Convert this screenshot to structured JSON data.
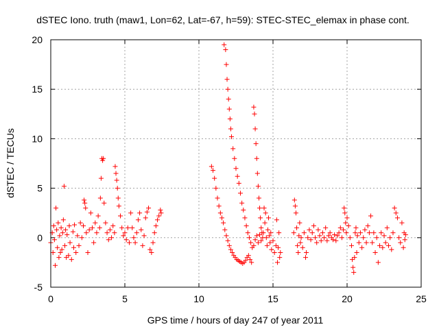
{
  "chart_data": {
    "type": "scatter",
    "title": "dSTEC Iono. truth (maw1, Lon=62, Lat=-67, h=59): STEC-STEC_elemax in phase cont.",
    "xlabel": "GPS time / hours of day 247 of year 2011",
    "ylabel": "dSTEC  / TECUs",
    "xlim": [
      0,
      25
    ],
    "ylim": [
      -5,
      20
    ],
    "xticks": [
      0,
      5,
      10,
      15,
      20,
      25
    ],
    "yticks": [
      -5,
      0,
      5,
      10,
      15,
      20
    ],
    "grid": true,
    "marker": "+",
    "color": "#ff0000",
    "series": [
      {
        "name": "",
        "points": [
          [
            0.0,
            -0.5
          ],
          [
            0.1,
            0.5
          ],
          [
            0.15,
            -1.5
          ],
          [
            0.2,
            1.2
          ],
          [
            0.25,
            -0.2
          ],
          [
            0.3,
            -2.8
          ],
          [
            0.35,
            3.0
          ],
          [
            0.4,
            0.8
          ],
          [
            0.45,
            -1.0
          ],
          [
            0.5,
            1.5
          ],
          [
            0.55,
            -2.0
          ],
          [
            0.6,
            0.2
          ],
          [
            0.65,
            -1.5
          ],
          [
            0.7,
            1.0
          ],
          [
            0.75,
            -1.2
          ],
          [
            0.8,
            0.5
          ],
          [
            0.85,
            1.8
          ],
          [
            0.9,
            5.2
          ],
          [
            0.95,
            -0.8
          ],
          [
            1.0,
            0.8
          ],
          [
            1.05,
            -2.0
          ],
          [
            1.1,
            0.3
          ],
          [
            1.2,
            -1.8
          ],
          [
            1.25,
            1.2
          ],
          [
            1.3,
            -0.5
          ],
          [
            1.4,
            -2.2
          ],
          [
            1.5,
            0.6
          ],
          [
            1.55,
            -1.0
          ],
          [
            1.6,
            1.3
          ],
          [
            1.7,
            -1.5
          ],
          [
            1.8,
            0.2
          ],
          [
            1.9,
            -0.8
          ],
          [
            2.0,
            1.5
          ],
          [
            2.1,
            0.0
          ],
          [
            2.2,
            1.2
          ],
          [
            2.25,
            3.8
          ],
          [
            2.3,
            3.5
          ],
          [
            2.35,
            3.0
          ],
          [
            2.4,
            0.5
          ],
          [
            2.5,
            -1.5
          ],
          [
            2.6,
            0.8
          ],
          [
            2.7,
            2.5
          ],
          [
            2.8,
            1.0
          ],
          [
            2.9,
            -0.5
          ],
          [
            3.0,
            1.5
          ],
          [
            3.1,
            0.5
          ],
          [
            3.2,
            2.2
          ],
          [
            3.3,
            1.0
          ],
          [
            3.35,
            4.0
          ],
          [
            3.4,
            6.0
          ],
          [
            3.45,
            8.0
          ],
          [
            3.5,
            7.8
          ],
          [
            3.55,
            8.0
          ],
          [
            3.6,
            3.5
          ],
          [
            3.7,
            1.5
          ],
          [
            3.8,
            0.5
          ],
          [
            3.9,
            -0.2
          ],
          [
            4.0,
            0.8
          ],
          [
            4.1,
            0.0
          ],
          [
            4.2,
            1.2
          ],
          [
            4.3,
            0.5
          ],
          [
            4.35,
            7.2
          ],
          [
            4.4,
            6.5
          ],
          [
            4.45,
            5.8
          ],
          [
            4.5,
            5.0
          ],
          [
            4.55,
            4.0
          ],
          [
            4.6,
            3.2
          ],
          [
            4.7,
            2.2
          ],
          [
            4.8,
            1.0
          ],
          [
            4.9,
            0.2
          ],
          [
            5.0,
            0.5
          ],
          [
            5.1,
            -0.2
          ],
          [
            5.2,
            1.0
          ],
          [
            5.3,
            -0.5
          ],
          [
            5.4,
            2.5
          ],
          [
            5.5,
            1.0
          ],
          [
            5.6,
            0.0
          ],
          [
            5.7,
            -0.5
          ],
          [
            5.8,
            0.5
          ],
          [
            5.9,
            1.8
          ],
          [
            6.0,
            2.5
          ],
          [
            6.1,
            0.8
          ],
          [
            6.2,
            -0.8
          ],
          [
            6.3,
            0.2
          ],
          [
            6.4,
            2.0
          ],
          [
            6.5,
            2.6
          ],
          [
            6.6,
            3.0
          ],
          [
            6.7,
            -1.2
          ],
          [
            6.8,
            -1.5
          ],
          [
            6.9,
            -0.5
          ],
          [
            7.0,
            0.5
          ],
          [
            7.1,
            1.2
          ],
          [
            7.2,
            1.8
          ],
          [
            7.3,
            2.2
          ],
          [
            7.4,
            2.8
          ],
          [
            7.45,
            2.5
          ],
          [
            10.85,
            7.2
          ],
          [
            10.95,
            6.8
          ],
          [
            11.05,
            6.0
          ],
          [
            11.15,
            5.0
          ],
          [
            11.25,
            4.0
          ],
          [
            11.35,
            3.2
          ],
          [
            11.45,
            2.5
          ],
          [
            11.55,
            2.0
          ],
          [
            11.65,
            1.5
          ],
          [
            11.75,
            0.8
          ],
          [
            11.85,
            0.2
          ],
          [
            11.95,
            -0.3
          ],
          [
            12.05,
            -0.8
          ],
          [
            12.15,
            -1.2
          ],
          [
            12.25,
            -1.5
          ],
          [
            12.35,
            -1.8
          ],
          [
            12.45,
            -2.0
          ],
          [
            12.55,
            -2.2
          ],
          [
            12.65,
            -2.3
          ],
          [
            12.75,
            -2.4
          ],
          [
            12.85,
            -2.5
          ],
          [
            12.95,
            -2.6
          ],
          [
            13.05,
            -2.5
          ],
          [
            13.15,
            -2.3
          ],
          [
            13.25,
            -2.0
          ],
          [
            13.35,
            -1.8
          ],
          [
            13.45,
            -2.2
          ],
          [
            13.55,
            -2.5
          ],
          [
            11.7,
            19.5
          ],
          [
            11.8,
            19.0
          ],
          [
            11.85,
            17.5
          ],
          [
            11.9,
            16.0
          ],
          [
            11.95,
            15.0
          ],
          [
            12.0,
            14.0
          ],
          [
            12.05,
            13.0
          ],
          [
            12.1,
            12.0
          ],
          [
            12.15,
            11.0
          ],
          [
            12.2,
            10.2
          ],
          [
            12.3,
            9.0
          ],
          [
            12.4,
            8.0
          ],
          [
            12.5,
            7.0
          ],
          [
            12.6,
            6.2
          ],
          [
            12.7,
            5.5
          ],
          [
            12.8,
            4.5
          ],
          [
            12.9,
            3.5
          ],
          [
            13.0,
            2.8
          ],
          [
            13.1,
            2.0
          ],
          [
            13.2,
            1.2
          ],
          [
            13.3,
            0.5
          ],
          [
            13.4,
            0.0
          ],
          [
            13.5,
            -0.5
          ],
          [
            13.6,
            -1.0
          ],
          [
            13.7,
            -0.8
          ],
          [
            13.7,
            13.2
          ],
          [
            13.75,
            12.5
          ],
          [
            13.8,
            11.0
          ],
          [
            13.85,
            9.5
          ],
          [
            13.9,
            8.0
          ],
          [
            13.95,
            6.5
          ],
          [
            14.0,
            5.2
          ],
          [
            14.05,
            4.0
          ],
          [
            14.1,
            3.0
          ],
          [
            14.15,
            2.0
          ],
          [
            14.2,
            1.0
          ],
          [
            14.25,
            0.5
          ],
          [
            14.3,
            0.0
          ],
          [
            13.8,
            -0.2
          ],
          [
            13.9,
            0.2
          ],
          [
            14.0,
            -0.5
          ],
          [
            14.1,
            0.3
          ],
          [
            14.2,
            -0.3
          ],
          [
            14.35,
            0.5
          ],
          [
            14.4,
            3.0
          ],
          [
            14.45,
            1.5
          ],
          [
            14.5,
            2.5
          ],
          [
            14.55,
            0.0
          ],
          [
            14.6,
            -0.8
          ],
          [
            14.65,
            0.8
          ],
          [
            14.7,
            2.0
          ],
          [
            14.75,
            0.2
          ],
          [
            14.8,
            -0.5
          ],
          [
            14.85,
            0.5
          ],
          [
            14.9,
            -1.2
          ],
          [
            15.0,
            -0.3
          ],
          [
            15.1,
            -1.5
          ],
          [
            15.2,
            -0.8
          ],
          [
            15.25,
            1.8
          ],
          [
            15.3,
            -2.5
          ],
          [
            15.35,
            -1.0
          ],
          [
            15.4,
            0.5
          ],
          [
            15.45,
            -2.0
          ],
          [
            15.5,
            -1.5
          ],
          [
            16.4,
            0.5
          ],
          [
            16.45,
            3.8
          ],
          [
            16.5,
            3.2
          ],
          [
            16.55,
            2.5
          ],
          [
            16.6,
            1.0
          ],
          [
            16.65,
            -0.8
          ],
          [
            16.7,
            -1.5
          ],
          [
            16.75,
            0.2
          ],
          [
            16.8,
            1.5
          ],
          [
            16.85,
            -0.5
          ],
          [
            16.9,
            0.0
          ],
          [
            17.0,
            -1.0
          ],
          [
            17.1,
            0.5
          ],
          [
            17.2,
            -2.0
          ],
          [
            17.25,
            -1.5
          ],
          [
            17.35,
            0.0
          ],
          [
            17.45,
            0.8
          ],
          [
            17.55,
            -0.2
          ],
          [
            17.65,
            0.5
          ],
          [
            17.75,
            1.2
          ],
          [
            17.85,
            0.0
          ],
          [
            17.95,
            -0.5
          ],
          [
            18.05,
            0.8
          ],
          [
            18.15,
            0.2
          ],
          [
            18.25,
            -0.3
          ],
          [
            18.35,
            0.5
          ],
          [
            18.45,
            0.0
          ],
          [
            18.55,
            1.0
          ],
          [
            18.65,
            -0.3
          ],
          [
            18.75,
            0.2
          ],
          [
            18.85,
            0.5
          ],
          [
            18.95,
            0.0
          ],
          [
            19.05,
            -0.2
          ],
          [
            19.15,
            0.3
          ],
          [
            19.25,
            -0.3
          ],
          [
            19.35,
            0.2
          ],
          [
            19.45,
            0.5
          ],
          [
            19.55,
            1.0
          ],
          [
            19.65,
            0.0
          ],
          [
            19.75,
            0.8
          ],
          [
            19.8,
            3.0
          ],
          [
            19.85,
            2.5
          ],
          [
            19.9,
            1.5
          ],
          [
            19.95,
            0.5
          ],
          [
            20.0,
            2.0
          ],
          [
            20.1,
            1.2
          ],
          [
            20.2,
            0.0
          ],
          [
            20.3,
            -0.8
          ],
          [
            20.35,
            -2.2
          ],
          [
            20.4,
            -3.0
          ],
          [
            20.45,
            -3.5
          ],
          [
            20.5,
            -2.0
          ],
          [
            20.55,
            0.5
          ],
          [
            20.6,
            1.0
          ],
          [
            20.65,
            -1.5
          ],
          [
            20.7,
            0.2
          ],
          [
            20.8,
            -0.5
          ],
          [
            20.9,
            0.5
          ],
          [
            21.0,
            -1.0
          ],
          [
            21.1,
            0.0
          ],
          [
            21.2,
            0.8
          ],
          [
            21.3,
            -0.5
          ],
          [
            21.4,
            1.2
          ],
          [
            21.5,
            0.5
          ],
          [
            21.6,
            2.2
          ],
          [
            21.7,
            -0.5
          ],
          [
            21.8,
            0.5
          ],
          [
            21.9,
            -1.5
          ],
          [
            22.0,
            0.0
          ],
          [
            22.1,
            -2.5
          ],
          [
            22.2,
            -0.8
          ],
          [
            22.3,
            0.5
          ],
          [
            22.4,
            -1.0
          ],
          [
            22.5,
            0.2
          ],
          [
            22.6,
            -0.5
          ],
          [
            22.7,
            1.0
          ],
          [
            22.8,
            -0.8
          ],
          [
            22.9,
            0.0
          ],
          [
            23.0,
            -1.2
          ],
          [
            23.1,
            0.5
          ],
          [
            23.2,
            3.0
          ],
          [
            23.3,
            2.5
          ],
          [
            23.4,
            2.0
          ],
          [
            23.5,
            0.0
          ],
          [
            23.6,
            -0.5
          ],
          [
            23.7,
            1.5
          ],
          [
            23.8,
            -1.0
          ],
          [
            23.85,
            0.5
          ],
          [
            23.9,
            -0.2
          ],
          [
            23.95,
            0.3
          ]
        ]
      }
    ]
  }
}
